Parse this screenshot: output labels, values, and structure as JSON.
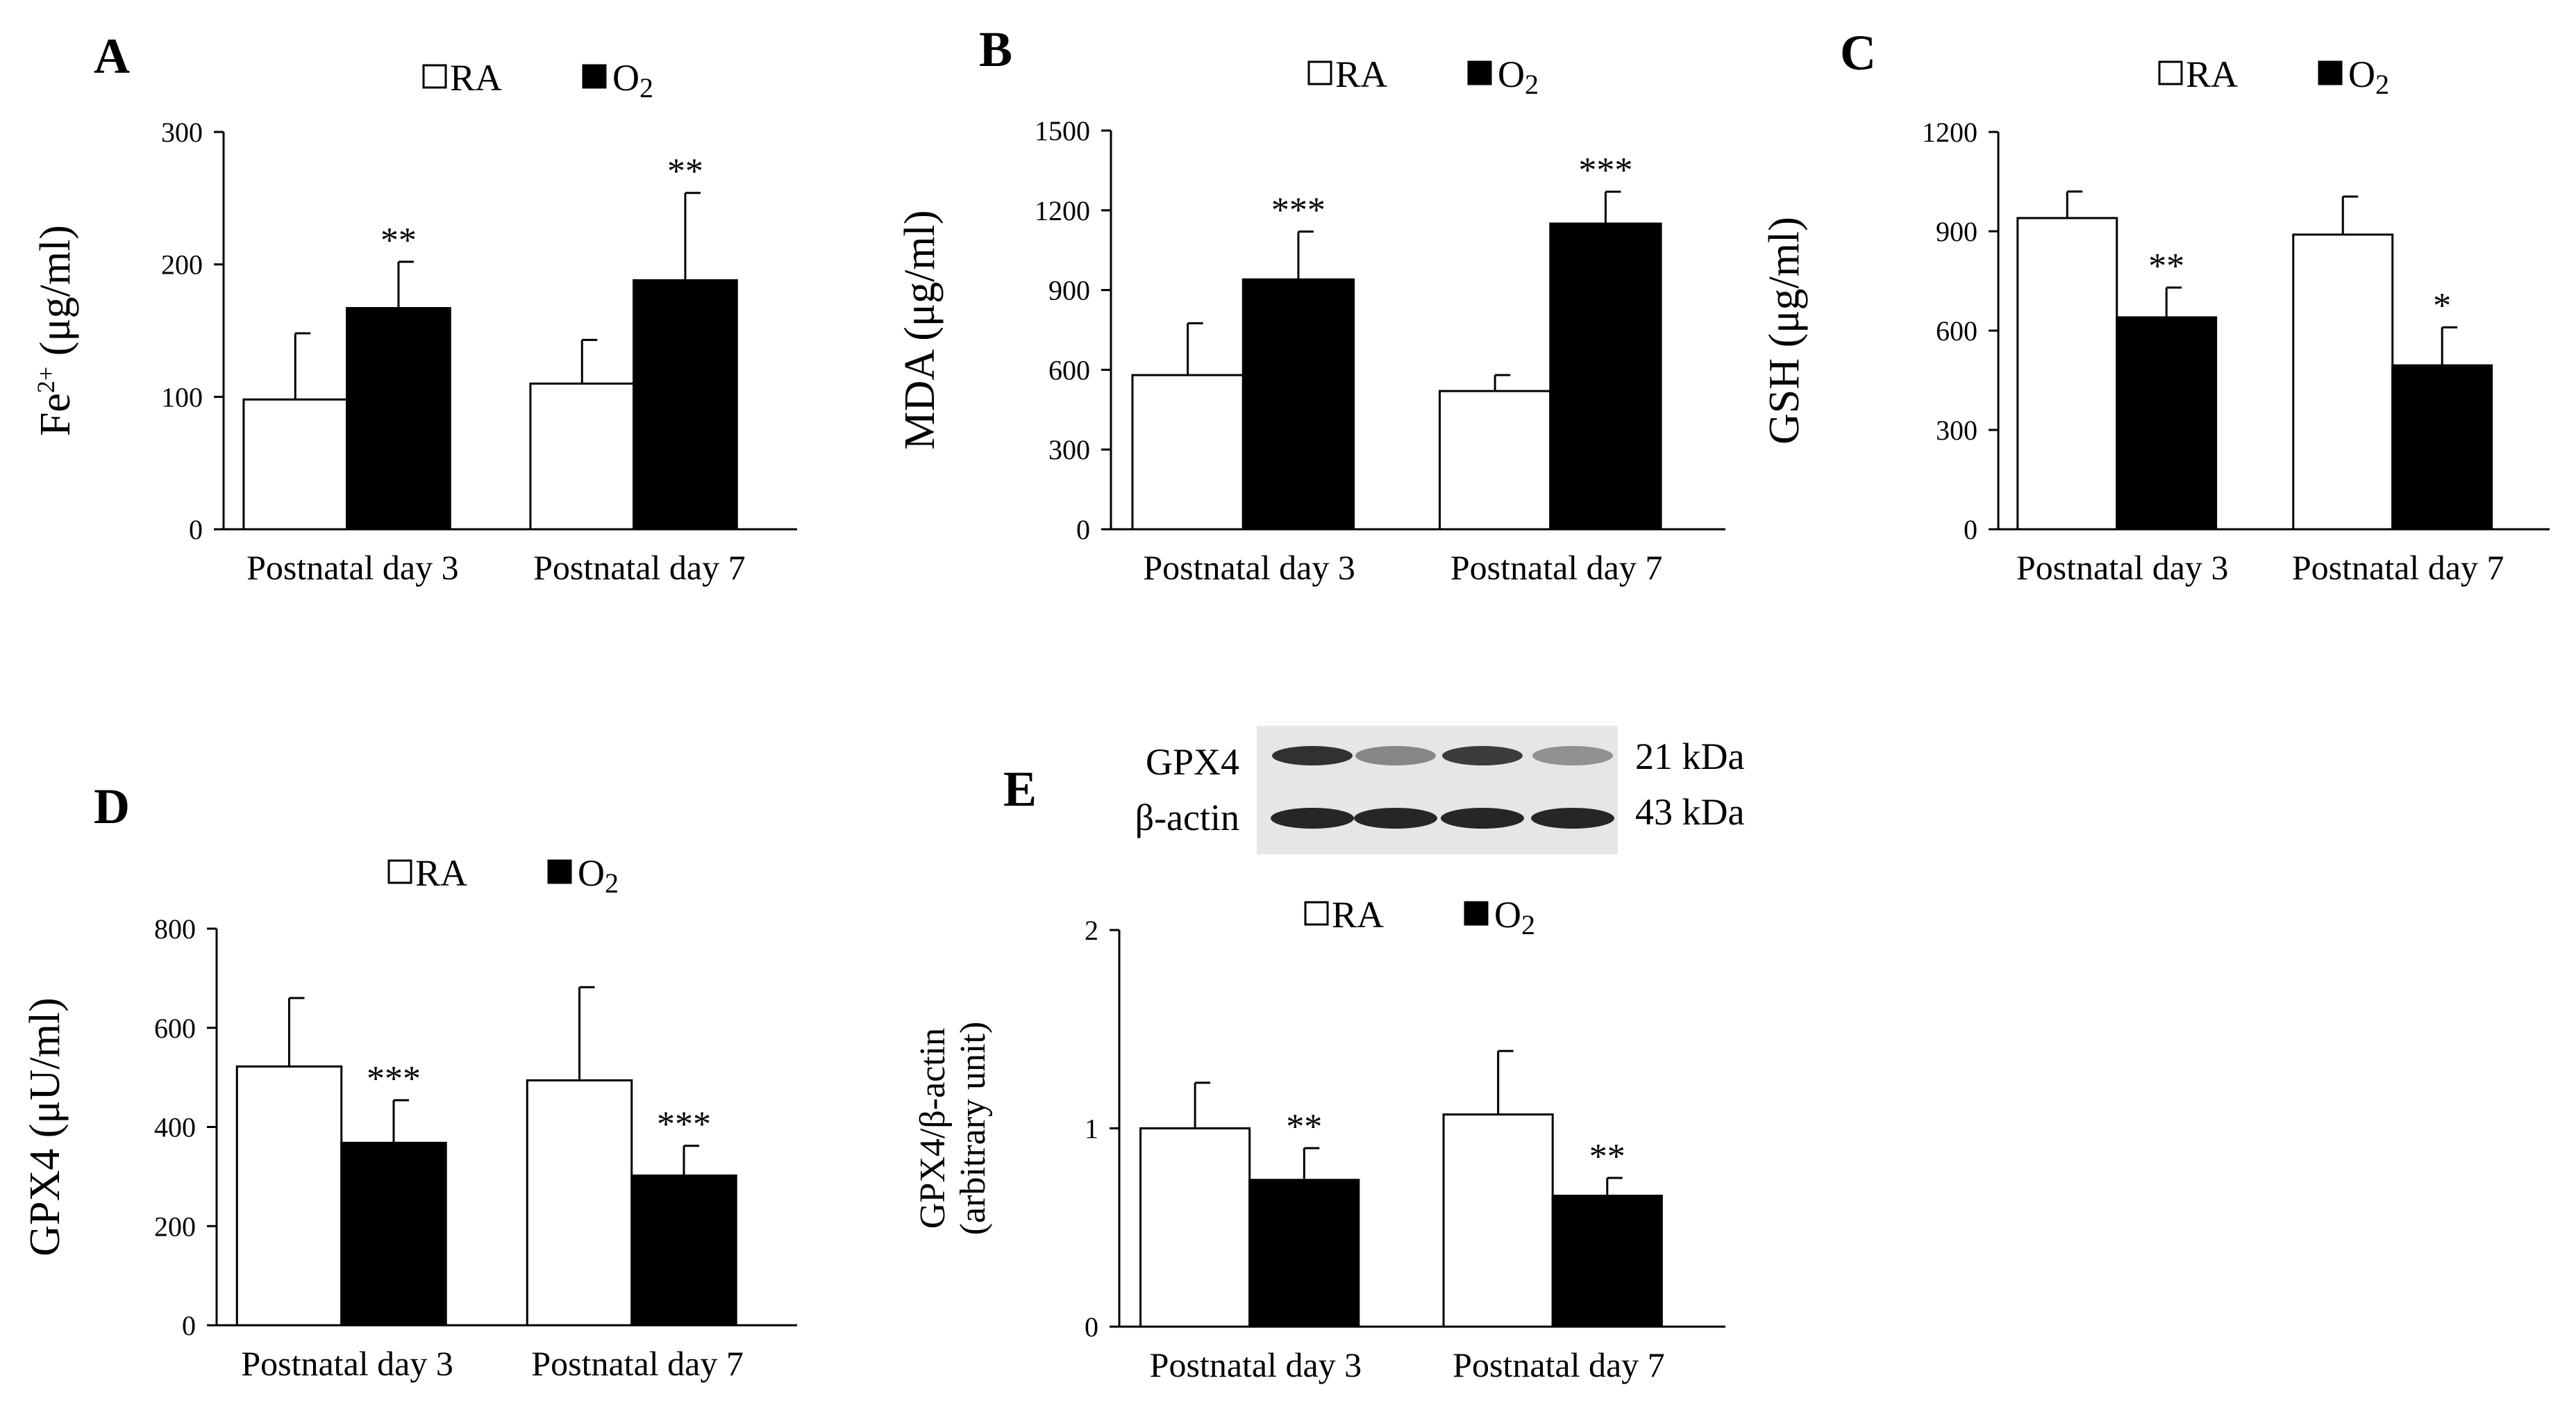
{
  "chart_data": [
    {
      "panel": "A",
      "type": "bar",
      "ylabel_main": "Fe",
      "ylabel_sup": "2+",
      "ylabel_rest": " (μg/ml)",
      "yticks": [
        0,
        100,
        200,
        300
      ],
      "ylim": [
        0,
        300
      ],
      "categories": [
        "Postnatal day 3",
        "Postnatal day 7"
      ],
      "legend": {
        "ra": "RA",
        "o2_main": "O",
        "o2_sub": "2"
      },
      "series": [
        {
          "key": "RA",
          "values": [
            98,
            110
          ],
          "errors": [
            50,
            33
          ]
        },
        {
          "key": "O2",
          "values": [
            167,
            188
          ],
          "errors": [
            35,
            66
          ],
          "significance": [
            "**",
            "**"
          ]
        }
      ]
    },
    {
      "panel": "B",
      "type": "bar",
      "ylabel_main": "MDA (μg/ml)",
      "ylabel_sup": "",
      "ylabel_rest": "",
      "yticks": [
        0,
        300,
        600,
        900,
        1200,
        1500
      ],
      "ylim": [
        0,
        1500
      ],
      "categories": [
        "Postnatal day 3",
        "Postnatal day 7"
      ],
      "legend": {
        "ra": "RA",
        "o2_main": "O",
        "o2_sub": "2"
      },
      "series": [
        {
          "key": "RA",
          "values": [
            580,
            520
          ],
          "errors": [
            195,
            60
          ]
        },
        {
          "key": "O2",
          "values": [
            940,
            1150
          ],
          "errors": [
            180,
            120
          ],
          "significance": [
            "***",
            "***"
          ]
        }
      ]
    },
    {
      "panel": "C",
      "type": "bar",
      "ylabel_main": "GSH (μg/ml)",
      "ylabel_sup": "",
      "ylabel_rest": "",
      "yticks": [
        0,
        300,
        600,
        900,
        1200
      ],
      "ylim": [
        0,
        1200
      ],
      "categories": [
        "Postnatal day 3",
        "Postnatal day 7"
      ],
      "legend": {
        "ra": "RA",
        "o2_main": "O",
        "o2_sub": "2"
      },
      "series": [
        {
          "key": "RA",
          "values": [
            940,
            890
          ],
          "errors": [
            80,
            115
          ]
        },
        {
          "key": "O2",
          "values": [
            640,
            495
          ],
          "errors": [
            90,
            115
          ],
          "significance": [
            "**",
            "*"
          ]
        }
      ]
    },
    {
      "panel": "D",
      "type": "bar",
      "ylabel_main": "GPX4 (μU/ml)",
      "ylabel_sup": "",
      "ylabel_rest": "",
      "yticks": [
        0,
        200,
        400,
        600,
        800
      ],
      "ylim": [
        0,
        800
      ],
      "categories": [
        "Postnatal day 3",
        "Postnatal day 7"
      ],
      "legend": {
        "ra": "RA",
        "o2_main": "O",
        "o2_sub": "2"
      },
      "series": [
        {
          "key": "RA",
          "values": [
            522,
            494
          ],
          "errors": [
            138,
            188
          ]
        },
        {
          "key": "O2",
          "values": [
            368,
            302
          ],
          "errors": [
            86,
            60
          ],
          "significance": [
            "***",
            "***"
          ]
        }
      ]
    },
    {
      "panel": "E",
      "type": "bar",
      "ylabel_main": "GPX4/β-actin",
      "ylabel_line2": "(arbitrary unit)",
      "ylabel_sup": "",
      "ylabel_rest": "",
      "yticks": [
        0,
        1,
        2
      ],
      "ylim": [
        0,
        2
      ],
      "categories": [
        "Postnatal day 3",
        "Postnatal day 7"
      ],
      "legend": {
        "ra": "RA",
        "o2_main": "O",
        "o2_sub": "2"
      },
      "series": [
        {
          "key": "RA",
          "values": [
            1.0,
            1.07
          ],
          "errors": [
            0.23,
            0.32
          ]
        },
        {
          "key": "O2",
          "values": [
            0.74,
            0.66
          ],
          "errors": [
            0.16,
            0.09
          ],
          "significance": [
            "**",
            "**"
          ]
        }
      ]
    }
  ],
  "blot": {
    "rows": [
      {
        "label": "GPX4",
        "size": "21 kDa"
      },
      {
        "label": "β-actin",
        "size": "43 kDa"
      }
    ]
  }
}
